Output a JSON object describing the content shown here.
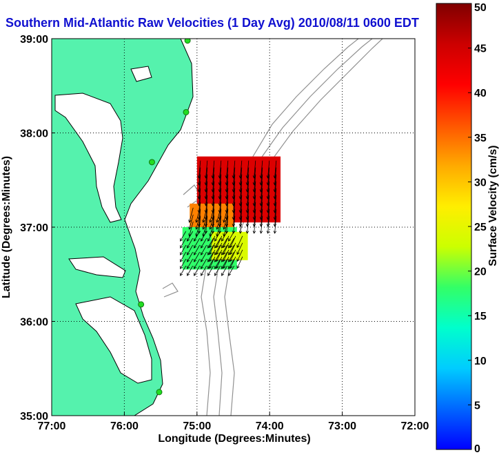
{
  "title": "Southern Mid-Atlantic Raw Velocities (1 Day Avg) 2010/08/11 0600 EDT",
  "map": {
    "xlabel": "Longitude (Degrees:Minutes)",
    "ylabel": "Latitude (Degrees:Minutes)",
    "lon_range": [
      -77,
      -72
    ],
    "lat_range": [
      35,
      39
    ],
    "lon_ticks": [
      {
        "value": -77,
        "label": "77:00"
      },
      {
        "value": -76,
        "label": "76:00"
      },
      {
        "value": -75,
        "label": "75:00"
      },
      {
        "value": -74,
        "label": "74:00"
      },
      {
        "value": -73,
        "label": "73:00"
      },
      {
        "value": -72,
        "label": "72:00"
      }
    ],
    "lat_ticks": [
      {
        "value": 39,
        "label": "39:00"
      },
      {
        "value": 38,
        "label": "38:00"
      },
      {
        "value": 37,
        "label": "37:00"
      },
      {
        "value": 36,
        "label": "36:00"
      },
      {
        "value": 35,
        "label": "35:00"
      }
    ],
    "grid": "dotted",
    "colors": {
      "land": "#55f2ad",
      "coastline": "#000000",
      "bathymetry": "#909090",
      "station": "#22dd22"
    },
    "stations": [
      {
        "lon": -75.13,
        "lat": 38.98
      },
      {
        "lon": -75.15,
        "lat": 38.22
      },
      {
        "lon": -75.62,
        "lat": 37.69
      },
      {
        "lon": -75.77,
        "lat": 36.18
      },
      {
        "lon": -75.52,
        "lat": 35.25
      }
    ]
  },
  "colorbar": {
    "label": "Surface Velocity (cm/s)",
    "min": 0,
    "max": 50,
    "ticks": [
      0,
      5,
      10,
      15,
      20,
      25,
      30,
      35,
      40,
      45,
      50
    ],
    "colormap": [
      "#0000ff",
      "#0066ff",
      "#00ccff",
      "#00ffcc",
      "#33ff66",
      "#ccff00",
      "#ffee00",
      "#ffaa00",
      "#ff5500",
      "#ff0000",
      "#cc0000",
      "#800000"
    ]
  },
  "chart_data": {
    "type": "vector_field",
    "x_units": "degrees longitude",
    "y_units": "degrees latitude",
    "value_units": "cm/s",
    "regions": [
      {
        "lon": [
          -75.0,
          -73.85
        ],
        "lat": [
          37.05,
          37.75
        ],
        "speed": 44,
        "direction_deg": 185
      },
      {
        "lon": [
          -75.1,
          -74.5
        ],
        "lat": [
          37.0,
          37.25
        ],
        "speed": 34,
        "direction_deg": 195
      },
      {
        "lon": [
          -75.2,
          -74.45
        ],
        "lat": [
          36.55,
          37.0
        ],
        "speed": 18,
        "direction_deg": 210
      },
      {
        "lon": [
          -74.8,
          -74.3
        ],
        "lat": [
          36.65,
          36.95
        ],
        "speed": 24,
        "direction_deg": 205
      }
    ]
  }
}
